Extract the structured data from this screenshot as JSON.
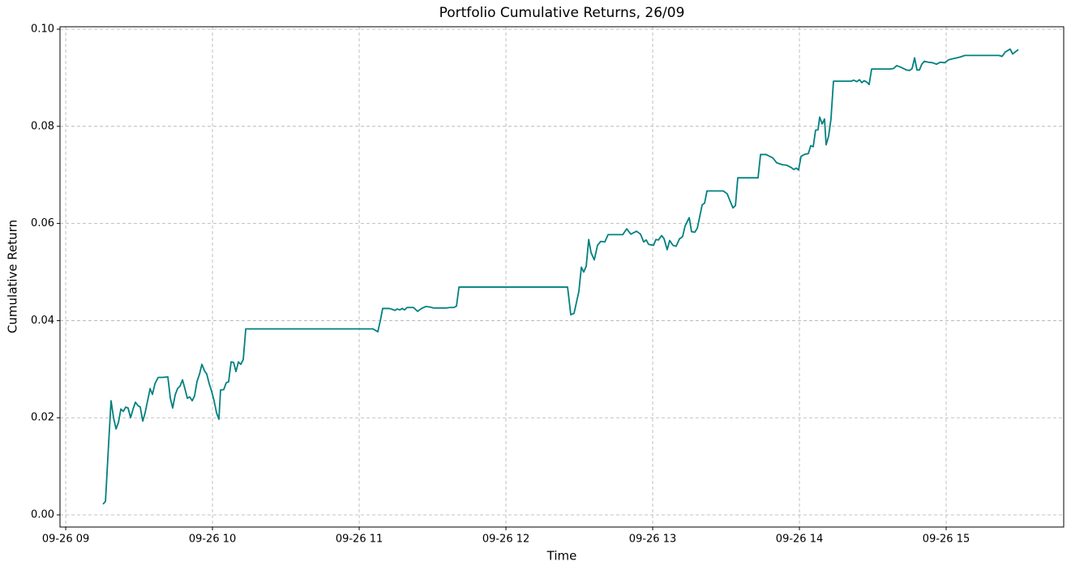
{
  "chart_data": {
    "type": "line",
    "title": "Portfolio Cumulative Returns, 26/09",
    "x_label": "Time",
    "y_label": "Cumulative Return",
    "grid": true,
    "xlim": [
      8.961,
      15.801
    ],
    "ylim": [
      -0.0025,
      0.1005
    ],
    "xticks": [
      {
        "value": 9,
        "label": "09-26 09"
      },
      {
        "value": 10,
        "label": "09-26 10"
      },
      {
        "value": 11,
        "label": "09-26 11"
      },
      {
        "value": 12,
        "label": "09-26 12"
      },
      {
        "value": 13,
        "label": "09-26 13"
      },
      {
        "value": 14,
        "label": "09-26 14"
      },
      {
        "value": 15,
        "label": "09-26 15"
      }
    ],
    "yticks": [
      {
        "value": 0,
        "label": "0.00"
      },
      {
        "value": 0.02,
        "label": "0.02"
      },
      {
        "value": 0.04,
        "label": "0.04"
      },
      {
        "value": 0.06,
        "label": "0.06"
      },
      {
        "value": 0.08,
        "label": "0.08"
      },
      {
        "value": 0.1,
        "label": "0.10"
      }
    ],
    "x": [
      9.254,
      9.271,
      9.293,
      9.309,
      9.326,
      9.343,
      9.359,
      9.376,
      9.392,
      9.409,
      9.425,
      9.442,
      9.459,
      9.475,
      9.492,
      9.508,
      9.525,
      9.541,
      9.558,
      9.575,
      9.591,
      9.608,
      9.63,
      9.657,
      9.696,
      9.713,
      9.729,
      9.746,
      9.762,
      9.779,
      9.796,
      9.812,
      9.829,
      9.845,
      9.862,
      9.878,
      9.895,
      9.912,
      9.928,
      9.945,
      9.961,
      9.978,
      9.994,
      10.011,
      10.028,
      10.044,
      10.055,
      10.077,
      10.094,
      10.11,
      10.127,
      10.144,
      10.16,
      10.177,
      10.193,
      10.21,
      10.227,
      10.762,
      11.094,
      11.127,
      11.144,
      11.16,
      11.204,
      11.227,
      11.243,
      11.26,
      11.276,
      11.293,
      11.309,
      11.326,
      11.37,
      11.398,
      11.425,
      11.453,
      11.481,
      11.508,
      11.536,
      11.591,
      11.619,
      11.646,
      11.663,
      11.68,
      12.42,
      12.442,
      12.464,
      12.497,
      12.514,
      12.53,
      12.547,
      12.564,
      12.58,
      12.602,
      12.624,
      12.646,
      12.674,
      12.696,
      12.796,
      12.823,
      12.851,
      12.89,
      12.917,
      12.939,
      12.956,
      12.972,
      13.006,
      13.022,
      13.039,
      13.061,
      13.077,
      13.099,
      13.116,
      13.138,
      13.16,
      13.182,
      13.204,
      13.221,
      13.249,
      13.265,
      13.287,
      13.304,
      13.337,
      13.354,
      13.37,
      13.481,
      13.508,
      13.525,
      13.547,
      13.564,
      13.58,
      13.718,
      13.735,
      13.773,
      13.818,
      13.845,
      13.884,
      13.912,
      13.945,
      13.961,
      13.978,
      13.994,
      14.011,
      14.033,
      14.061,
      14.077,
      14.094,
      14.11,
      14.127,
      14.138,
      14.155,
      14.171,
      14.182,
      14.199,
      14.215,
      14.232,
      14.354,
      14.37,
      14.392,
      14.409,
      14.425,
      14.442,
      14.459,
      14.475,
      14.492,
      14.619,
      14.641,
      14.663,
      14.696,
      14.729,
      14.751,
      14.768,
      14.785,
      14.801,
      14.818,
      14.834,
      14.851,
      14.878,
      14.906,
      14.934,
      14.961,
      14.989,
      15.017,
      15.044,
      15.072,
      15.099,
      15.127,
      15.359,
      15.381,
      15.403,
      15.436,
      15.453,
      15.47,
      15.492
    ],
    "series": [
      {
        "name": "Cumulative Return",
        "color": "#008080",
        "values": [
          0.0022,
          0.0028,
          0.015,
          0.0235,
          0.02,
          0.0177,
          0.019,
          0.0218,
          0.0213,
          0.0222,
          0.022,
          0.02,
          0.0218,
          0.0232,
          0.0225,
          0.0222,
          0.0193,
          0.021,
          0.0235,
          0.026,
          0.0248,
          0.027,
          0.0283,
          0.0283,
          0.0284,
          0.024,
          0.022,
          0.0247,
          0.026,
          0.0265,
          0.0278,
          0.026,
          0.024,
          0.0243,
          0.0235,
          0.0245,
          0.0275,
          0.029,
          0.031,
          0.0297,
          0.029,
          0.027,
          0.0255,
          0.0235,
          0.021,
          0.0197,
          0.0257,
          0.0258,
          0.0272,
          0.0274,
          0.0315,
          0.0314,
          0.0295,
          0.0315,
          0.031,
          0.032,
          0.0383,
          0.0383,
          0.0383,
          0.0377,
          0.04,
          0.0425,
          0.0425,
          0.0423,
          0.0421,
          0.0424,
          0.0422,
          0.0425,
          0.0422,
          0.0427,
          0.0427,
          0.0419,
          0.0425,
          0.0429,
          0.0428,
          0.0426,
          0.0426,
          0.0426,
          0.0427,
          0.0427,
          0.043,
          0.0469,
          0.0469,
          0.0412,
          0.0415,
          0.046,
          0.051,
          0.05,
          0.0512,
          0.0567,
          0.054,
          0.0525,
          0.0555,
          0.0563,
          0.0562,
          0.0577,
          0.0577,
          0.0589,
          0.0578,
          0.0584,
          0.0578,
          0.0562,
          0.0566,
          0.0557,
          0.0555,
          0.0567,
          0.0566,
          0.0575,
          0.0569,
          0.0546,
          0.0565,
          0.0555,
          0.0553,
          0.0568,
          0.0573,
          0.0595,
          0.0612,
          0.0583,
          0.0582,
          0.059,
          0.0638,
          0.0642,
          0.0667,
          0.0667,
          0.0661,
          0.0648,
          0.0632,
          0.0637,
          0.0694,
          0.0694,
          0.0742,
          0.0742,
          0.0735,
          0.0725,
          0.0721,
          0.072,
          0.0715,
          0.0711,
          0.0714,
          0.071,
          0.0738,
          0.0742,
          0.0744,
          0.076,
          0.0758,
          0.0792,
          0.0793,
          0.0819,
          0.0805,
          0.0815,
          0.0762,
          0.078,
          0.0815,
          0.0893,
          0.0893,
          0.0895,
          0.0892,
          0.0896,
          0.089,
          0.0894,
          0.0891,
          0.0886,
          0.0918,
          0.0918,
          0.0919,
          0.0925,
          0.0921,
          0.0916,
          0.0915,
          0.0919,
          0.0941,
          0.0916,
          0.0916,
          0.0928,
          0.0934,
          0.0932,
          0.0931,
          0.0928,
          0.0932,
          0.0931,
          0.0937,
          0.0939,
          0.0941,
          0.0943,
          0.0946,
          0.0946,
          0.0944,
          0.0953,
          0.0959,
          0.0949,
          0.0953,
          0.0958
        ]
      }
    ]
  }
}
